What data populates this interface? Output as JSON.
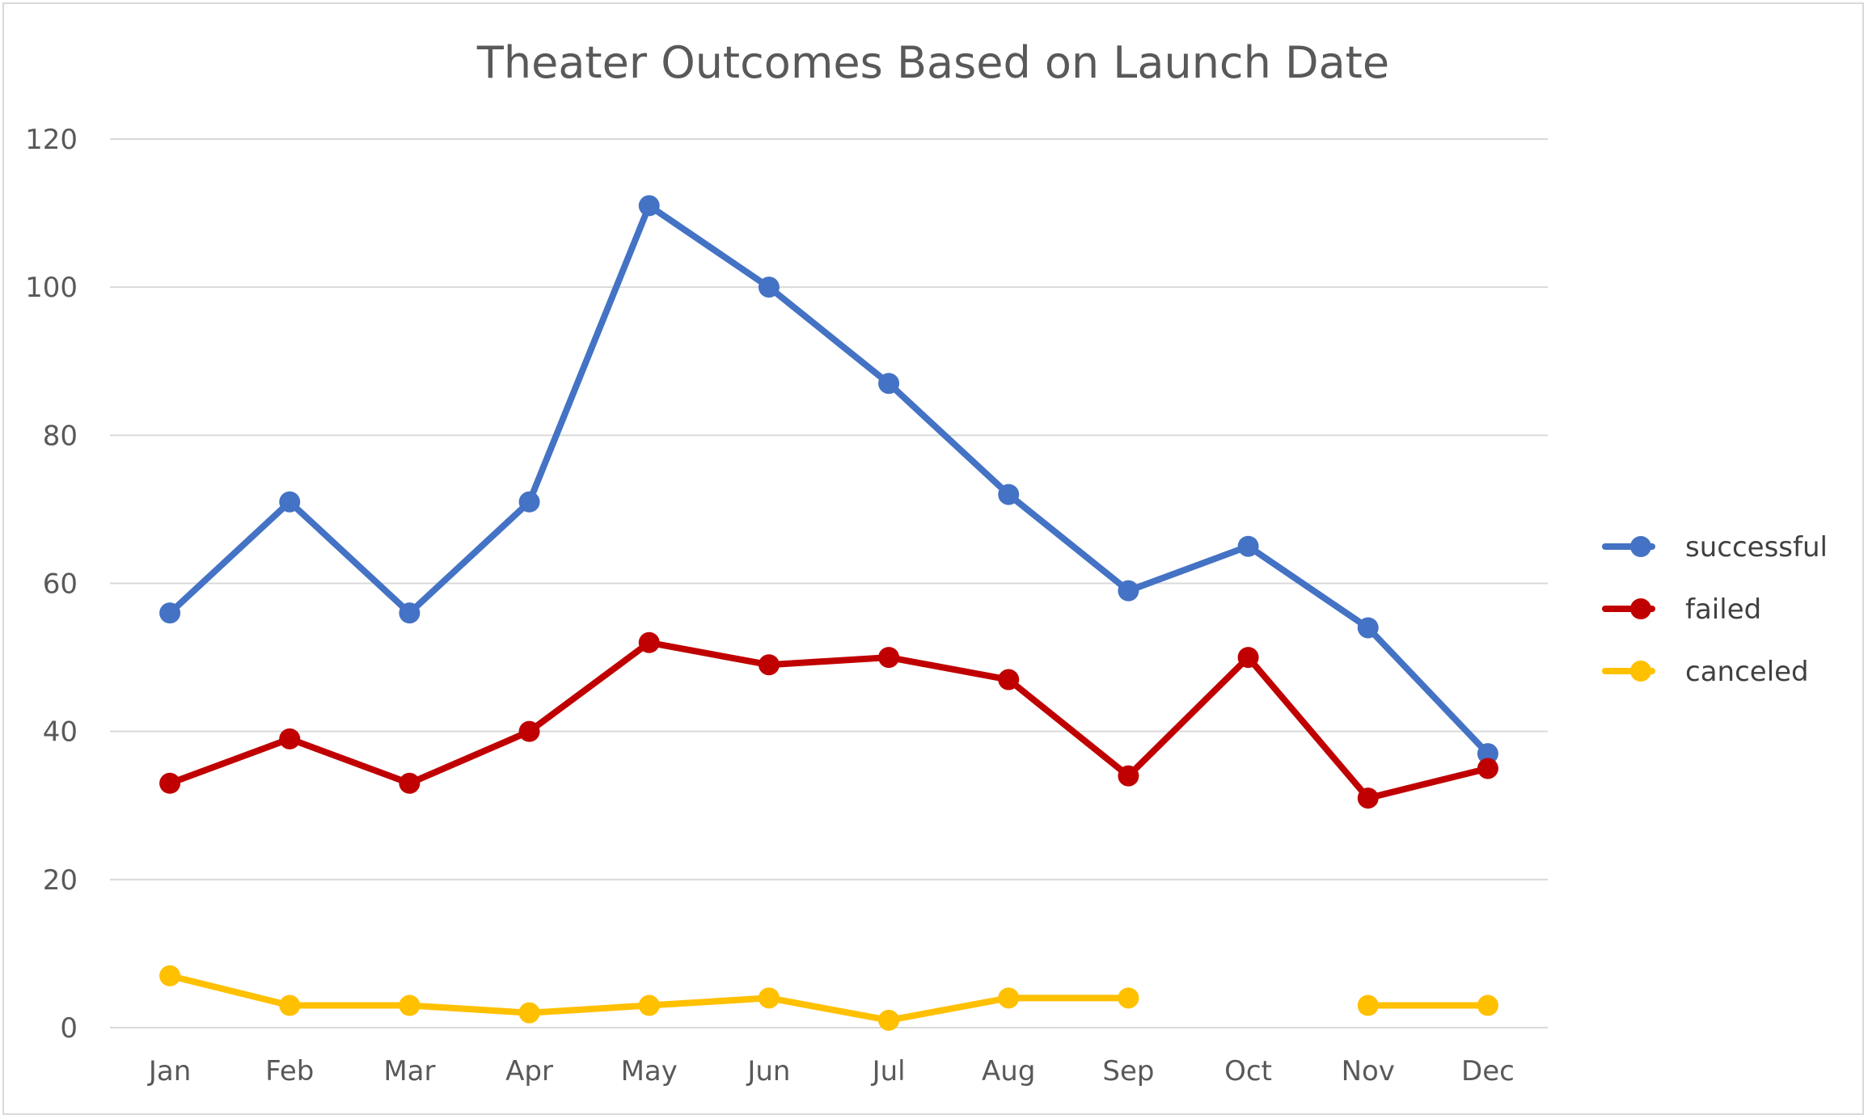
{
  "chart_data": {
    "type": "line",
    "title": "Theater Outcomes Based on Launch Date",
    "xlabel": "",
    "ylabel": "",
    "ylim": [
      0,
      120
    ],
    "yticks": [
      "0",
      "20",
      "40",
      "60",
      "80",
      "100",
      "120"
    ],
    "categories": [
      "Jan",
      "Feb",
      "Mar",
      "Apr",
      "May",
      "Jun",
      "Jul",
      "Aug",
      "Sep",
      "Oct",
      "Nov",
      "Dec"
    ],
    "grid": true,
    "legend": "right",
    "series": [
      {
        "name": "successful",
        "color": "#4472c4",
        "values": [
          56,
          71,
          56,
          71,
          111,
          100,
          87,
          72,
          59,
          65,
          54,
          37
        ]
      },
      {
        "name": "failed",
        "color": "#c00000",
        "values": [
          33,
          39,
          33,
          40,
          52,
          49,
          50,
          47,
          34,
          50,
          31,
          35
        ]
      },
      {
        "name": "canceled",
        "color": "#ffc000",
        "values": [
          7,
          3,
          3,
          2,
          3,
          4,
          1,
          4,
          4,
          null,
          3,
          3
        ]
      }
    ]
  }
}
